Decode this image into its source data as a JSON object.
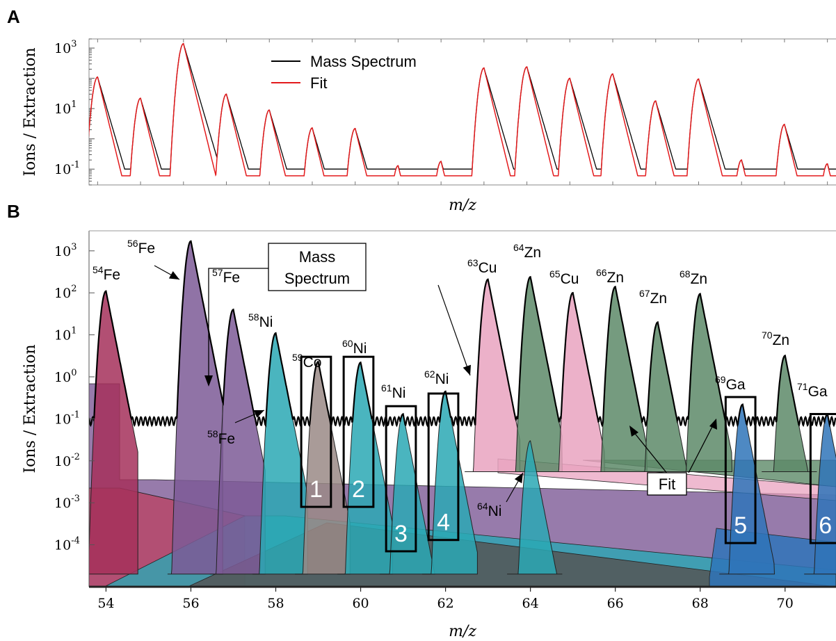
{
  "panels": {
    "a": {
      "letter": "A"
    },
    "b": {
      "letter": "B"
    }
  },
  "legend": {
    "mass_spectrum": "Mass Spectrum",
    "fit": "Fit"
  },
  "callouts": {
    "mass_spectrum_line1": "Mass",
    "mass_spectrum_line2": "Spectrum",
    "fit": "Fit"
  },
  "colors": {
    "spectrum": "#000000",
    "fit": "#e31a1c",
    "fe": "#7d5a96",
    "fe54": "#a5305a",
    "ni": "#2aa8b4",
    "co": "#9a8a86",
    "cu": "#e9a3c0",
    "zn": "#5d8a68",
    "ga": "#2f74b8",
    "tail": "#555555"
  },
  "box_labels": [
    "1",
    "2",
    "3",
    "4",
    "5",
    "6"
  ],
  "chart_data": [
    {
      "type": "line",
      "panel": "A",
      "xlabel": "m/z",
      "ylabel": "Ions / Extraction",
      "yscale": "log",
      "xlim": [
        53.8,
        71.2
      ],
      "ylim": [
        0.03,
        2000
      ],
      "y_ticks": [
        {
          "value": 0.1,
          "base": "10",
          "exp": "-1"
        },
        {
          "value": 10,
          "base": "10",
          "exp": "1"
        },
        {
          "value": 1000,
          "base": "10",
          "exp": "3"
        }
      ],
      "legend_position": "top-center",
      "series": [
        {
          "name": "Mass Spectrum",
          "baseline": 0.1,
          "peaks": [
            {
              "x": 54.0,
              "y": 110
            },
            {
              "x": 55.0,
              "y": 22
            },
            {
              "x": 56.0,
              "y": 1400
            },
            {
              "x": 57.0,
              "y": 30
            },
            {
              "x": 58.0,
              "y": 9
            },
            {
              "x": 59.0,
              "y": 2.3
            },
            {
              "x": 60.0,
              "y": 2.2
            },
            {
              "x": 61.0,
              "y": 0.13
            },
            {
              "x": 62.0,
              "y": 0.18
            },
            {
              "x": 63.0,
              "y": 220
            },
            {
              "x": 64.0,
              "y": 240
            },
            {
              "x": 65.0,
              "y": 100
            },
            {
              "x": 66.0,
              "y": 140
            },
            {
              "x": 67.0,
              "y": 18
            },
            {
              "x": 68.0,
              "y": 95
            },
            {
              "x": 69.0,
              "y": 0.2
            },
            {
              "x": 70.0,
              "y": 3
            },
            {
              "x": 71.0,
              "y": 0.15
            }
          ]
        },
        {
          "name": "Fit",
          "baseline": 0.06,
          "peaks": [
            {
              "x": 54.0,
              "y": 110
            },
            {
              "x": 55.0,
              "y": 22
            },
            {
              "x": 56.0,
              "y": 1400
            },
            {
              "x": 57.0,
              "y": 30
            },
            {
              "x": 58.0,
              "y": 9
            },
            {
              "x": 59.0,
              "y": 2.3
            },
            {
              "x": 60.0,
              "y": 2.2
            },
            {
              "x": 61.0,
              "y": 0.13
            },
            {
              "x": 62.0,
              "y": 0.18
            },
            {
              "x": 63.0,
              "y": 220
            },
            {
              "x": 64.0,
              "y": 240
            },
            {
              "x": 65.0,
              "y": 100
            },
            {
              "x": 66.0,
              "y": 140
            },
            {
              "x": 67.0,
              "y": 18
            },
            {
              "x": 68.0,
              "y": 95
            },
            {
              "x": 69.0,
              "y": 0.2
            },
            {
              "x": 70.0,
              "y": 3
            },
            {
              "x": 71.0,
              "y": 0.15
            }
          ]
        }
      ]
    },
    {
      "type": "area",
      "panel": "B",
      "xlabel": "m/z",
      "ylabel": "Ions / Extraction",
      "yscale": "log",
      "xlim": [
        53.6,
        71.2
      ],
      "ylim": [
        1e-05,
        3000
      ],
      "x_ticks": [
        54,
        56,
        58,
        60,
        62,
        64,
        66,
        68,
        70
      ],
      "y_ticks": [
        {
          "value": 0.0001,
          "base": "10",
          "exp": "-4"
        },
        {
          "value": 0.001,
          "base": "10",
          "exp": "-3"
        },
        {
          "value": 0.01,
          "base": "10",
          "exp": "-2"
        },
        {
          "value": 0.1,
          "base": "10",
          "exp": "-1"
        },
        {
          "value": 1,
          "base": "10",
          "exp": "0"
        },
        {
          "value": 10,
          "base": "10",
          "exp": "1"
        },
        {
          "value": 100,
          "base": "10",
          "exp": "2"
        },
        {
          "value": 1000,
          "base": "10",
          "exp": "3"
        }
      ],
      "isotopes": [
        {
          "mass": "54",
          "symbol": "Fe",
          "x": 54.0,
          "y": 110,
          "color": "fe54"
        },
        {
          "mass": "56",
          "symbol": "Fe",
          "x": 56.0,
          "y": 1700,
          "color": "fe"
        },
        {
          "mass": "57",
          "symbol": "Fe",
          "x": 57.0,
          "y": 40,
          "color": "fe"
        },
        {
          "mass": "58",
          "symbol": "Ni",
          "x": 58.0,
          "y": 11,
          "color": "ni"
        },
        {
          "mass": "58",
          "symbol": "Fe",
          "x": 58.0,
          "y": 0.2,
          "color": "fe"
        },
        {
          "mass": "59",
          "symbol": "Co",
          "x": 59.0,
          "y": 2.3,
          "color": "co"
        },
        {
          "mass": "60",
          "symbol": "Ni",
          "x": 60.0,
          "y": 2.2,
          "color": "ni"
        },
        {
          "mass": "61",
          "symbol": "Ni",
          "x": 61.0,
          "y": 0.13,
          "color": "ni"
        },
        {
          "mass": "62",
          "symbol": "Ni",
          "x": 62.0,
          "y": 0.45,
          "color": "ni"
        },
        {
          "mass": "63",
          "symbol": "Cu",
          "x": 63.0,
          "y": 210,
          "color": "cu"
        },
        {
          "mass": "64",
          "symbol": "Zn",
          "x": 64.0,
          "y": 240,
          "color": "zn"
        },
        {
          "mass": "64",
          "symbol": "Ni",
          "x": 64.0,
          "y": 0.03,
          "color": "ni"
        },
        {
          "mass": "65",
          "symbol": "Cu",
          "x": 65.0,
          "y": 100,
          "color": "cu"
        },
        {
          "mass": "66",
          "symbol": "Zn",
          "x": 66.0,
          "y": 140,
          "color": "zn"
        },
        {
          "mass": "67",
          "symbol": "Zn",
          "x": 67.0,
          "y": 20,
          "color": "zn"
        },
        {
          "mass": "68",
          "symbol": "Zn",
          "x": 68.0,
          "y": 95,
          "color": "zn"
        },
        {
          "mass": "69",
          "symbol": "Ga",
          "x": 69.0,
          "y": 0.22,
          "color": "ga"
        },
        {
          "mass": "70",
          "symbol": "Zn",
          "x": 70.0,
          "y": 3.2,
          "color": "zn"
        },
        {
          "mass": "71",
          "symbol": "Ga",
          "x": 71.0,
          "y": 0.13,
          "color": "ga"
        }
      ],
      "boxes": [
        {
          "label": "1",
          "x0": 58.6,
          "x1": 59.3,
          "y0": 0.0008,
          "y1": 3
        },
        {
          "label": "2",
          "x0": 59.6,
          "x1": 60.3,
          "y0": 0.0008,
          "y1": 3
        },
        {
          "label": "3",
          "x0": 60.6,
          "x1": 61.3,
          "y0": 7e-05,
          "y1": 0.2
        },
        {
          "label": "4",
          "x0": 61.6,
          "x1": 62.3,
          "y0": 0.00013,
          "y1": 0.4
        },
        {
          "label": "5",
          "x0": 68.6,
          "x1": 69.3,
          "y0": 0.00011,
          "y1": 0.33
        },
        {
          "label": "6",
          "x0": 70.6,
          "x1": 71.3,
          "y0": 0.00011,
          "y1": 0.13
        }
      ]
    }
  ]
}
